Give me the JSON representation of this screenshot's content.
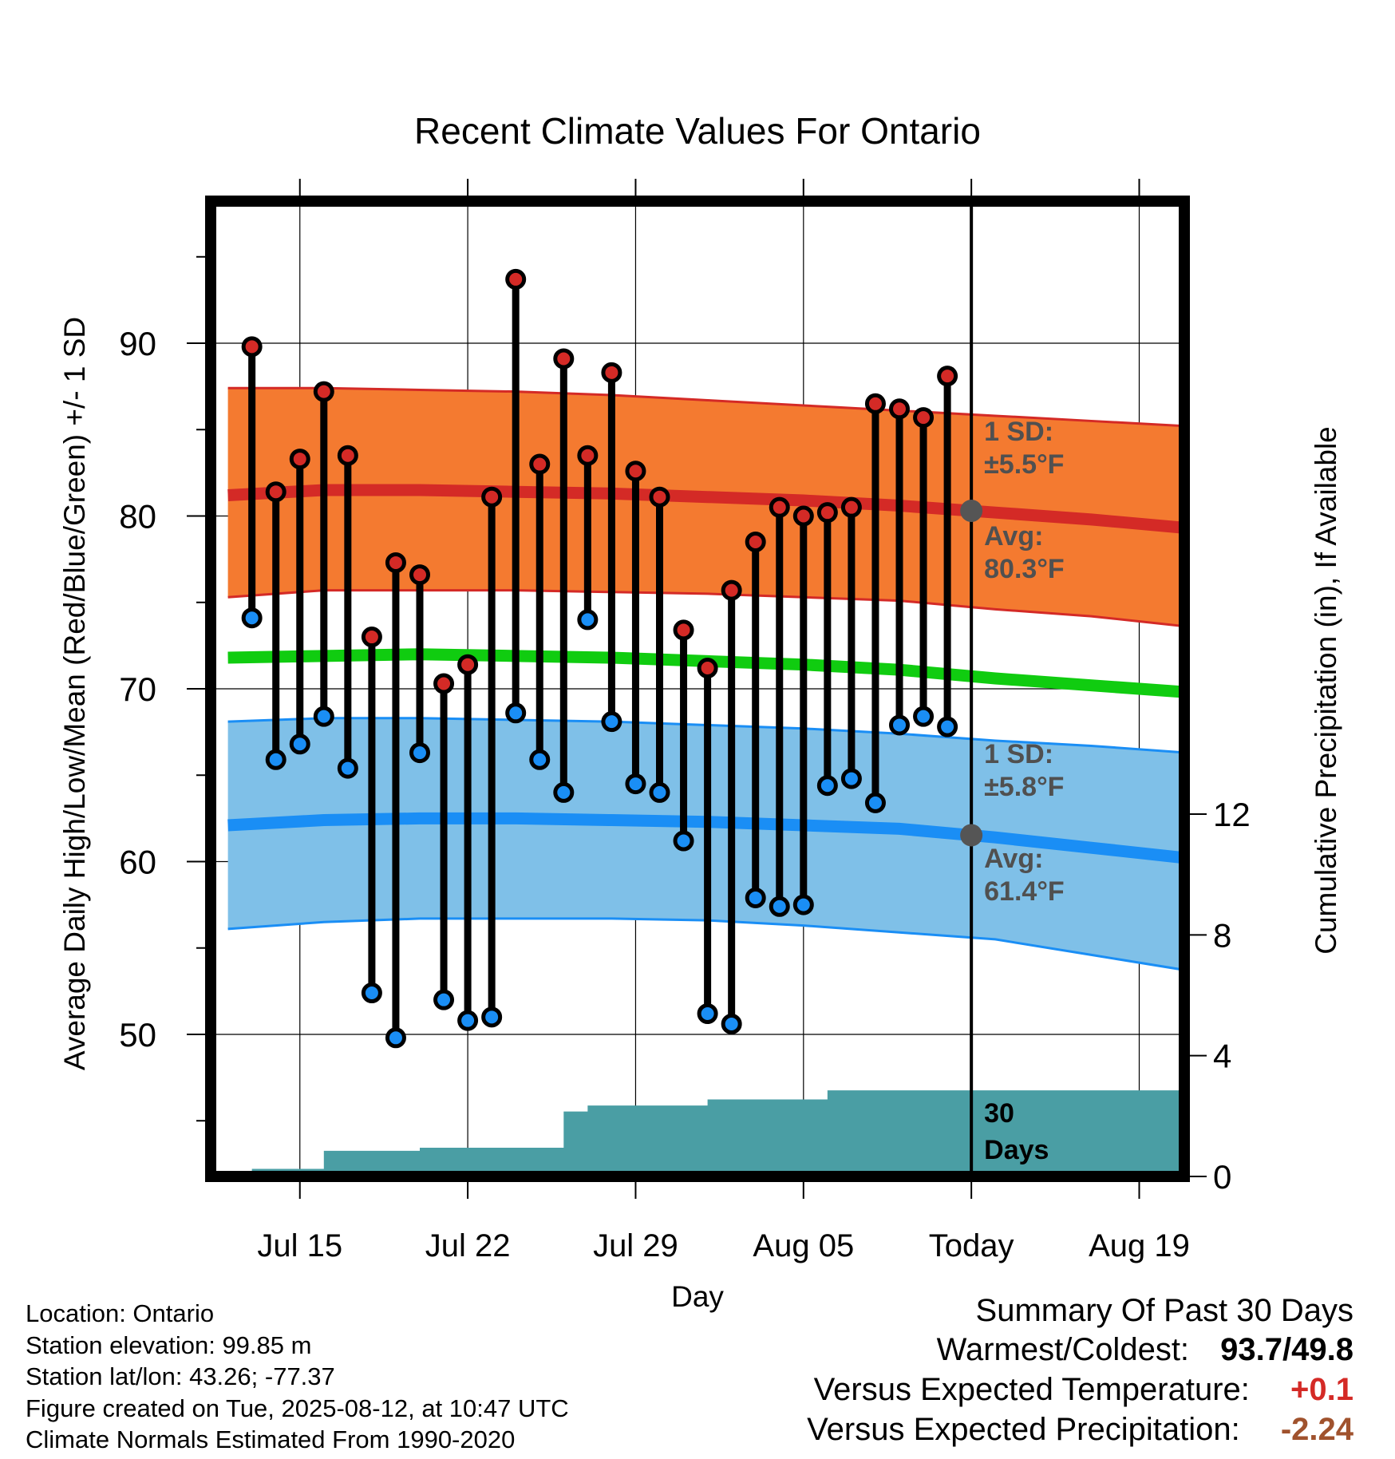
{
  "chart_data": {
    "type": "line",
    "title": "Recent Climate Values For Ontario",
    "xlabel": "Day",
    "ylabel": "Average Daily High/Low/Mean (Red/Blue/Green) +/- 1 SD",
    "y2label": "Cumulative Precipitation (in), If Available",
    "x_ticks": [
      "Jul 15",
      "Jul 22",
      "Jul 29",
      "Aug 05",
      "Today",
      "Aug 19"
    ],
    "y_ticks": [
      50,
      60,
      70,
      80,
      90
    ],
    "y2_ticks": [
      0,
      4,
      8,
      12
    ],
    "ylim": [
      41.5,
      98.5
    ],
    "y2lim": [
      0,
      32.3
    ],
    "xlim": [
      "Jul 12",
      "Aug 21"
    ],
    "grid": true,
    "today": "Aug 12",
    "observations": {
      "dates": [
        "Jul 13",
        "Jul 14",
        "Jul 15",
        "Jul 16",
        "Jul 17",
        "Jul 18",
        "Jul 19",
        "Jul 20",
        "Jul 21",
        "Jul 22",
        "Jul 23",
        "Jul 24",
        "Jul 25",
        "Jul 26",
        "Jul 27",
        "Jul 28",
        "Jul 29",
        "Jul 30",
        "Jul 31",
        "Aug 01",
        "Aug 02",
        "Aug 03",
        "Aug 04",
        "Aug 05",
        "Aug 06",
        "Aug 07",
        "Aug 08",
        "Aug 09",
        "Aug 10",
        "Aug 11"
      ],
      "high": [
        89.8,
        81.4,
        83.3,
        87.2,
        83.5,
        73.0,
        77.3,
        76.6,
        70.3,
        71.4,
        81.1,
        93.7,
        83.0,
        89.1,
        83.5,
        88.3,
        82.6,
        81.1,
        73.4,
        71.2,
        75.7,
        78.5,
        80.5,
        80.0,
        80.2,
        80.5,
        86.5,
        86.2,
        85.7,
        88.1
      ],
      "low": [
        74.1,
        65.9,
        66.8,
        68.4,
        65.4,
        52.4,
        49.8,
        66.3,
        52.0,
        50.8,
        51.0,
        68.6,
        65.9,
        64.0,
        74.0,
        68.1,
        64.5,
        64.0,
        61.2,
        51.2,
        50.6,
        57.9,
        57.4,
        57.5,
        64.4,
        64.8,
        63.4,
        67.9,
        68.4,
        67.8
      ]
    },
    "normals": {
      "dates": [
        "Jul 12",
        "Jul 16",
        "Jul 20",
        "Jul 24",
        "Jul 28",
        "Aug 01",
        "Aug 05",
        "Aug 09",
        "Aug 13",
        "Aug 17",
        "Aug 21"
      ],
      "high_avg": [
        81.2,
        81.5,
        81.5,
        81.4,
        81.3,
        81.1,
        80.9,
        80.6,
        80.2,
        79.8,
        79.3
      ],
      "high_upper": [
        87.4,
        87.4,
        87.3,
        87.2,
        87.0,
        86.7,
        86.4,
        86.1,
        85.8,
        85.5,
        85.2
      ],
      "high_lower": [
        75.3,
        75.7,
        75.7,
        75.7,
        75.6,
        75.5,
        75.3,
        75.1,
        74.6,
        74.2,
        73.6
      ],
      "mean": [
        71.8,
        71.9,
        72.0,
        71.9,
        71.8,
        71.6,
        71.4,
        71.1,
        70.6,
        70.2,
        69.8
      ],
      "low_avg": [
        62.1,
        62.4,
        62.5,
        62.5,
        62.4,
        62.3,
        62.1,
        61.9,
        61.4,
        60.8,
        60.2
      ],
      "low_upper": [
        68.1,
        68.3,
        68.3,
        68.2,
        68.1,
        67.9,
        67.7,
        67.4,
        67.0,
        66.7,
        66.3
      ],
      "low_lower": [
        56.1,
        56.5,
        56.7,
        56.7,
        56.7,
        56.6,
        56.3,
        55.9,
        55.5,
        54.6,
        53.7
      ]
    },
    "precip": {
      "dates": [
        "Jul 12",
        "Jul 13",
        "Jul 15",
        "Jul 16",
        "Jul 17",
        "Jul 19",
        "Jul 20",
        "Jul 25",
        "Jul 26",
        "Jul 27",
        "Jul 30",
        "Aug 01",
        "Aug 05",
        "Aug 06",
        "Aug 21"
      ],
      "cumulative": [
        0.0,
        0.25,
        0.25,
        0.85,
        0.85,
        0.85,
        0.95,
        0.95,
        2.15,
        2.35,
        2.35,
        2.55,
        2.55,
        2.85,
        2.85
      ]
    },
    "annotations": {
      "high_sd": "1 SD:",
      "high_sd_value": "±5.5°F",
      "high_avg_label": "Avg:",
      "high_avg_value": "80.3°F",
      "low_sd": "1 SD:",
      "low_sd_value": "±5.8°F",
      "low_avg_label": "Avg:",
      "low_avg_value": "61.4°F",
      "days_count": "30",
      "days_label": "Days"
    },
    "colors": {
      "high_band": "#f47a30",
      "high_line": "#d42a26",
      "low_band": "#7fc0e8",
      "low_line": "#1a8ef5",
      "mean_line": "#10cc10",
      "precip": "#4a9ea4",
      "high_dot": "#d42a26",
      "low_dot": "#1a8ef5",
      "annotation": "#505050"
    }
  },
  "footer": {
    "location": "Location: Ontario",
    "elevation": "Station elevation: 99.85 m",
    "latlon": "Station lat/lon: 43.26; -77.37",
    "created": "Figure created on Tue, 2025-08-12, at 10:47 UTC",
    "normals": "Climate Normals Estimated From 1990-2020"
  },
  "summary": {
    "title": "Summary Of Past 30 Days",
    "warm_cold_label": "Warmest/Coldest:",
    "warm_cold_value": "93.7/49.8",
    "temp_label": "Versus Expected Temperature:",
    "temp_value": "+0.1",
    "temp_color": "#d42a26",
    "precip_label": "Versus Expected Precipitation:",
    "precip_value": "-2.24",
    "precip_color": "#a0522d"
  }
}
